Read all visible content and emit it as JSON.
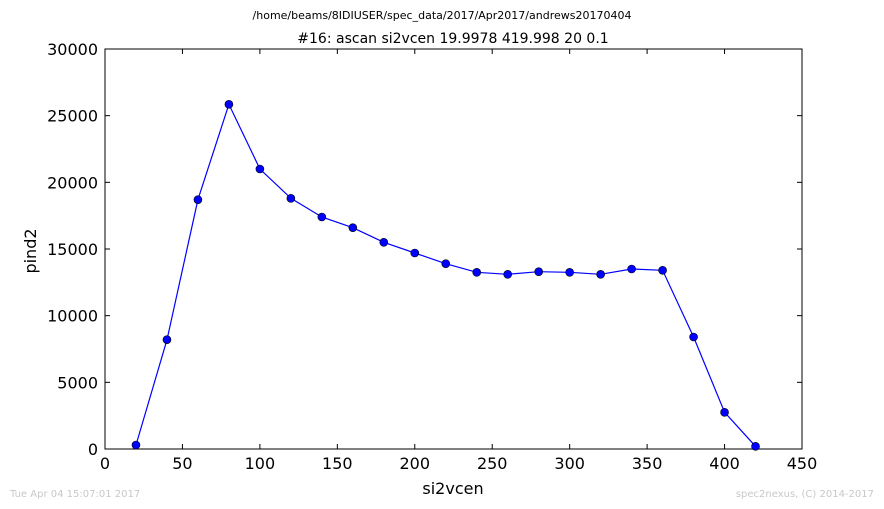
{
  "footer": {
    "timestamp": "Tue Apr 04 15:07:01 2017",
    "credit": "spec2nexus, (C) 2014-2017"
  },
  "chart_data": {
    "type": "line",
    "suptitle": "/home/beams/8IDIUSER/spec_data/2017/Apr2017/andrews20170404",
    "title": "#16: ascan  si2vcen 19.9978 419.998  20 0.1",
    "xlabel": "si2vcen",
    "ylabel": "pind2",
    "xlim": [
      0,
      450
    ],
    "ylim": [
      0,
      30000
    ],
    "xticks": [
      0,
      50,
      100,
      150,
      200,
      250,
      300,
      350,
      400,
      450
    ],
    "yticks": [
      0,
      5000,
      10000,
      15000,
      20000,
      25000,
      30000
    ],
    "grid": false,
    "line_color": "#0000ff",
    "marker_color": "#0000ff",
    "x": [
      20,
      40,
      60,
      80,
      100,
      120,
      140,
      160,
      180,
      200,
      220,
      240,
      260,
      280,
      300,
      320,
      340,
      360,
      380,
      400,
      420
    ],
    "y": [
      300,
      8200,
      18700,
      25850,
      21000,
      18800,
      17400,
      16600,
      15500,
      14700,
      13900,
      13250,
      13100,
      13300,
      13250,
      13100,
      13500,
      13400,
      8400,
      2750,
      200
    ]
  }
}
